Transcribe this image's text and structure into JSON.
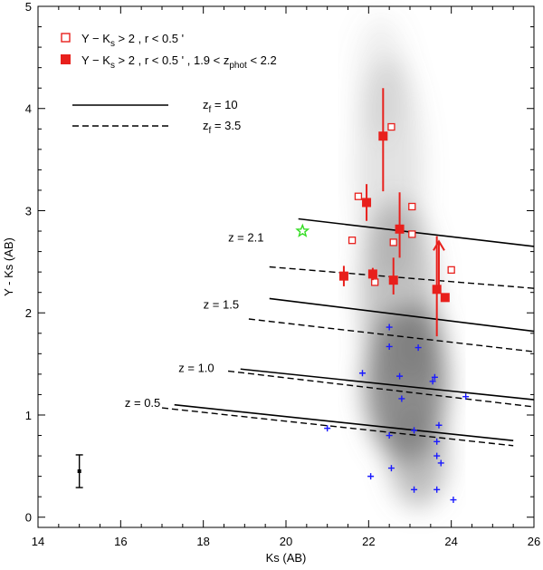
{
  "chart_data": {
    "type": "scatter",
    "title": "",
    "xlabel": "Ks (AB)",
    "ylabel": "Y - Ks (AB)",
    "xlim": [
      14,
      26
    ],
    "ylim": [
      -0.1,
      5
    ],
    "x_ticks": [
      14,
      16,
      18,
      20,
      22,
      24,
      26
    ],
    "x_tick_labels": [
      "14",
      "16",
      "18",
      "20",
      "22",
      "24",
      "26"
    ],
    "y_ticks": [
      0,
      1,
      2,
      3,
      4,
      5
    ],
    "y_tick_labels": [
      "0",
      "1",
      "2",
      "3",
      "4",
      "5"
    ],
    "grid": false,
    "legend": {
      "position": "top-left",
      "entries": [
        {
          "marker": "open-square",
          "label_main": "Y − K",
          "label_sub": "s",
          "label_rest": " > 2 , r < 0.5 '"
        },
        {
          "marker": "filled-square",
          "label_main": "Y − K",
          "label_sub": "s",
          "label_rest": " > 2 , r < 0.5 ' , 1.9 < z",
          "label_sub2": "phot",
          "label_end": " < 2.2"
        }
      ],
      "line_entries": [
        {
          "style": "solid",
          "label_main": "z",
          "label_sub": "f",
          "label_rest": " = 10"
        },
        {
          "style": "dashed",
          "label_main": "z",
          "label_sub": "f",
          "label_rest": " = 3.5"
        }
      ]
    },
    "series": [
      {
        "name": "Y − Ks > 2 , r < 0.5 '",
        "marker": "open-square",
        "color": "#e8201c",
        "points": [
          {
            "x": 22.55,
            "y": 3.82
          },
          {
            "x": 21.75,
            "y": 3.14
          },
          {
            "x": 23.05,
            "y": 3.04
          },
          {
            "x": 21.6,
            "y": 2.71
          },
          {
            "x": 22.6,
            "y": 2.69
          },
          {
            "x": 23.05,
            "y": 2.77
          },
          {
            "x": 22.15,
            "y": 2.3
          },
          {
            "x": 24.0,
            "y": 2.42
          }
        ]
      },
      {
        "name": "Y − Ks > 2 , r < 0.5 ' , 1.9 < zphot < 2.2",
        "marker": "filled-square",
        "color": "#e8201c",
        "points": [
          {
            "x": 22.35,
            "y": 3.73,
            "err_low": 0.54,
            "err_high": 0.47
          },
          {
            "x": 21.95,
            "y": 3.08,
            "err_low": 0.18,
            "err_high": 0.18
          },
          {
            "x": 22.75,
            "y": 2.82,
            "err_low": 0.28,
            "err_high": 0.36
          },
          {
            "x": 21.4,
            "y": 2.36,
            "err_low": 0.1,
            "err_high": 0.1
          },
          {
            "x": 22.1,
            "y": 2.38,
            "err_low": 0.06,
            "err_high": 0.06
          },
          {
            "x": 22.6,
            "y": 2.32,
            "err_low": 0.14,
            "err_high": 0.22
          },
          {
            "x": 23.65,
            "y": 2.23,
            "err_low": 0.46,
            "err_high": 0.52
          },
          {
            "x": 23.85,
            "y": 2.15,
            "err_low": 0.0,
            "err_high": 0.0,
            "lower_limit_arrow": true
          }
        ]
      },
      {
        "name": "field galaxies",
        "marker": "plus",
        "color": "#1a1aff",
        "points": [
          {
            "x": 22.5,
            "y": 1.86
          },
          {
            "x": 22.5,
            "y": 1.67
          },
          {
            "x": 23.2,
            "y": 1.66
          },
          {
            "x": 21.85,
            "y": 1.41
          },
          {
            "x": 22.75,
            "y": 1.38
          },
          {
            "x": 23.6,
            "y": 1.37
          },
          {
            "x": 23.55,
            "y": 1.33
          },
          {
            "x": 24.35,
            "y": 1.18
          },
          {
            "x": 22.8,
            "y": 1.16
          },
          {
            "x": 21.0,
            "y": 0.87
          },
          {
            "x": 22.5,
            "y": 0.8
          },
          {
            "x": 23.1,
            "y": 0.85
          },
          {
            "x": 23.7,
            "y": 0.9
          },
          {
            "x": 23.65,
            "y": 0.74
          },
          {
            "x": 23.65,
            "y": 0.6
          },
          {
            "x": 23.75,
            "y": 0.53
          },
          {
            "x": 22.55,
            "y": 0.48
          },
          {
            "x": 22.05,
            "y": 0.4
          },
          {
            "x": 23.1,
            "y": 0.27
          },
          {
            "x": 23.65,
            "y": 0.27
          },
          {
            "x": 24.05,
            "y": 0.17
          }
        ]
      },
      {
        "name": "star",
        "marker": "star",
        "color": "#33dd22",
        "points": [
          {
            "x": 20.4,
            "y": 2.8
          }
        ]
      },
      {
        "name": "typical error",
        "marker": "errorbar",
        "color": "#000000",
        "points": [
          {
            "x": 15.0,
            "y": 0.45,
            "err_low": 0.16,
            "err_high": 0.16
          }
        ]
      }
    ],
    "model_lines": [
      {
        "label": "z = 2.1",
        "label_x": 18.6,
        "label_y": 2.7,
        "solid": [
          [
            20.3,
            2.92
          ],
          [
            26.0,
            2.65
          ]
        ],
        "dashed": [
          [
            19.6,
            2.45
          ],
          [
            26.0,
            2.24
          ]
        ]
      },
      {
        "label": "z = 1.5",
        "label_x": 18.0,
        "label_y": 2.04,
        "solid": [
          [
            19.6,
            2.14
          ],
          [
            26.0,
            1.82
          ]
        ],
        "dashed": [
          [
            19.1,
            1.94
          ],
          [
            26.0,
            1.62
          ]
        ]
      },
      {
        "label": "z = 1.0",
        "label_x": 17.4,
        "label_y": 1.42,
        "solid": [
          [
            18.9,
            1.45
          ],
          [
            26.0,
            1.15
          ]
        ],
        "dashed": [
          [
            18.6,
            1.43
          ],
          [
            26.0,
            1.08
          ]
        ]
      },
      {
        "label": "z = 0.5",
        "label_x": 16.1,
        "label_y": 1.08,
        "solid": [
          [
            17.3,
            1.1
          ],
          [
            25.5,
            0.75
          ]
        ],
        "dashed": [
          [
            17.0,
            1.07
          ],
          [
            25.5,
            0.7
          ]
        ]
      }
    ],
    "density_background": {
      "description": "grey density of field galaxies",
      "color": "#7a7a7a"
    }
  }
}
